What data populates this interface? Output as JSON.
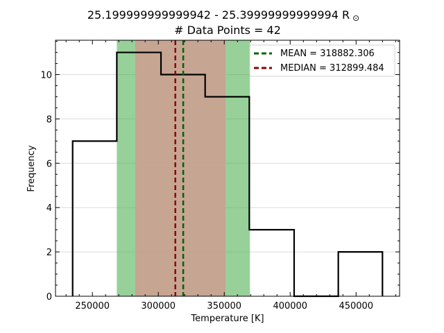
{
  "chart_data": {
    "type": "histogram",
    "title_line1": "25.199999999999942 - 25.39999999999994 R",
    "title_symbol": "⊙",
    "title_line2": "# Data Points = 42",
    "xlabel": "Temperature [K]",
    "ylabel": "Frequency",
    "xlim": [
      222000,
      483000
    ],
    "ylim": [
      0,
      11.55
    ],
    "xticks": [
      250000,
      300000,
      350000,
      400000,
      450000
    ],
    "xtick_labels": [
      "250000",
      "300000",
      "350000",
      "400000",
      "450000"
    ],
    "yticks": [
      0,
      2,
      4,
      6,
      8,
      10
    ],
    "ytick_labels": [
      "0",
      "2",
      "4",
      "6",
      "8",
      "10"
    ],
    "bin_edges": [
      235000,
      268500,
      302000,
      335500,
      369000,
      403000,
      436500,
      470000
    ],
    "counts": [
      7,
      11,
      10,
      9,
      3,
      0,
      2
    ],
    "bands": [
      {
        "name": "std-band",
        "from": 268500,
        "to": 369500,
        "color": "#4caf50",
        "opacity": 0.58
      },
      {
        "name": "iqr-band",
        "from": 282500,
        "to": 351000,
        "color": "#c8a292",
        "opacity": 0.95
      }
    ],
    "mean": 318882.306,
    "median": 312899.484,
    "mean_color": "#006400",
    "median_color": "#8b0000",
    "legend": {
      "placement": "top-right",
      "entries": [
        {
          "label": "MEAN = 318882.306",
          "color": "#006400"
        },
        {
          "label": "MEDIAN = 312899.484",
          "color": "#8b0000"
        }
      ]
    },
    "grid": "y"
  }
}
